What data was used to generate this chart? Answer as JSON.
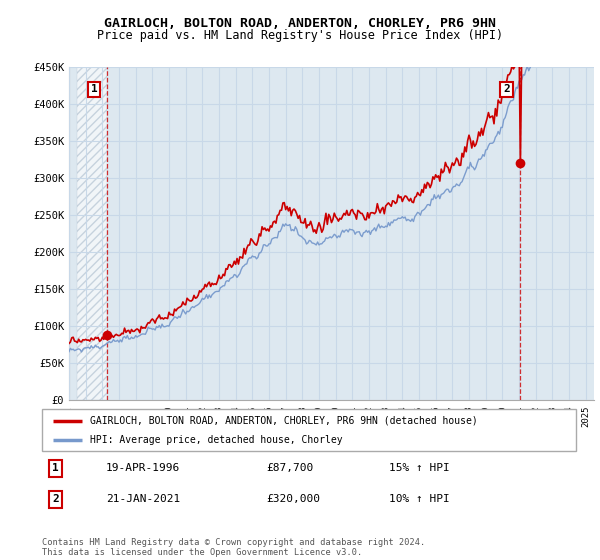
{
  "title": "GAIRLOCH, BOLTON ROAD, ANDERTON, CHORLEY, PR6 9HN",
  "subtitle": "Price paid vs. HM Land Registry's House Price Index (HPI)",
  "ylabel_ticks": [
    "£0",
    "£50K",
    "£100K",
    "£150K",
    "£200K",
    "£250K",
    "£300K",
    "£350K",
    "£400K",
    "£450K"
  ],
  "ytick_values": [
    0,
    50000,
    100000,
    150000,
    200000,
    250000,
    300000,
    350000,
    400000,
    450000
  ],
  "ylim": [
    0,
    450000
  ],
  "xlim_start": 1994.5,
  "xlim_end": 2025.5,
  "hatch_end_year": 1996.3,
  "sale1_year": 1996.3,
  "sale1_price": 87700,
  "sale2_year": 2021.05,
  "sale2_price": 320000,
  "marker_color": "#cc0000",
  "line1_color": "#cc0000",
  "line2_color": "#7799cc",
  "hatch_color": "#ccddee",
  "grid_color": "#c8d8e8",
  "bg_color": "#dde8f0",
  "legend1_label": "GAIRLOCH, BOLTON ROAD, ANDERTON, CHORLEY, PR6 9HN (detached house)",
  "legend2_label": "HPI: Average price, detached house, Chorley",
  "table_row1": [
    "1",
    "19-APR-1996",
    "£87,700",
    "15% ↑ HPI"
  ],
  "table_row2": [
    "2",
    "21-JAN-2021",
    "£320,000",
    "10% ↑ HPI"
  ],
  "footnote": "Contains HM Land Registry data © Crown copyright and database right 2024.\nThis data is licensed under the Open Government Licence v3.0.",
  "title_fontsize": 9.5,
  "subtitle_fontsize": 8.5
}
